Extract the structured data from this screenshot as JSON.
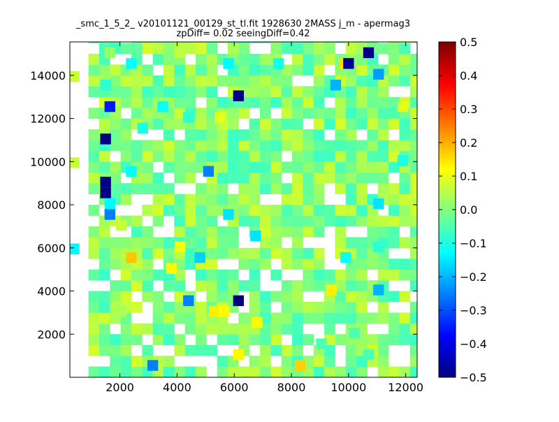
{
  "chart_data": {
    "type": "heatmap",
    "title": "_smc_1_5_2_ v20101121_00129_st_tl.fit 1928630 2MASS j_m - apermag3",
    "subtitle": "zpDiff= 0.02 seeingDiff=0.42",
    "xlabel": "",
    "ylabel": "",
    "xlim": [
      250,
      12400
    ],
    "ylim": [
      0,
      15550
    ],
    "x_ticks": [
      2000,
      4000,
      6000,
      8000,
      10000,
      12000
    ],
    "y_ticks": [
      2000,
      4000,
      6000,
      8000,
      10000,
      12000,
      14000
    ],
    "colorbar": {
      "colormap": "jet",
      "vmin": -0.5,
      "vmax": 0.5,
      "ticks": [
        0.5,
        0.4,
        0.3,
        0.2,
        0.1,
        0.0,
        -0.1,
        -0.2,
        -0.3,
        -0.4,
        -0.5
      ],
      "tick_labels": [
        "0.5",
        "0.4",
        "0.3",
        "0.2",
        "0.1",
        "0.0",
        "−0.1",
        "−0.2",
        "−0.3",
        "−0.4",
        "−0.5"
      ]
    },
    "grid": false,
    "cell_width": 375,
    "cell_height": 500,
    "cells": [
      {
        "x": 1650,
        "y": 15050,
        "v": 0.02
      },
      {
        "x": 2400,
        "y": 14550,
        "v": -0.12
      },
      {
        "x": 4100,
        "y": 15050,
        "v": 0.06
      },
      {
        "x": 5800,
        "y": 14550,
        "v": -0.13
      },
      {
        "x": 7550,
        "y": 14550,
        "v": -0.11
      },
      {
        "x": 9850,
        "y": 14550,
        "v": 0.16
      },
      {
        "x": 10000,
        "y": 14550,
        "v": -0.48
      },
      {
        "x": 10700,
        "y": 15050,
        "v": -0.5
      },
      {
        "x": 11050,
        "y": 14050,
        "v": -0.22
      },
      {
        "x": 1500,
        "y": 13550,
        "v": -0.08
      },
      {
        "x": 6150,
        "y": 13050,
        "v": -0.5
      },
      {
        "x": 9550,
        "y": 13550,
        "v": -0.2
      },
      {
        "x": 1650,
        "y": 12550,
        "v": -0.35
      },
      {
        "x": 3500,
        "y": 12550,
        "v": -0.12
      },
      {
        "x": 2800,
        "y": 11550,
        "v": -0.1
      },
      {
        "x": 4400,
        "y": 12050,
        "v": -0.08
      },
      {
        "x": 5500,
        "y": 12050,
        "v": 0.1
      },
      {
        "x": 1500,
        "y": 11050,
        "v": -0.5
      },
      {
        "x": 11900,
        "y": 12550,
        "v": 0.1
      },
      {
        "x": 11900,
        "y": 10050,
        "v": -0.1
      },
      {
        "x": 5100,
        "y": 9550,
        "v": -0.25
      },
      {
        "x": 2400,
        "y": 9550,
        "v": -0.12
      },
      {
        "x": 1500,
        "y": 9050,
        "v": -0.5
      },
      {
        "x": 1500,
        "y": 8550,
        "v": -0.5
      },
      {
        "x": 1650,
        "y": 8050,
        "v": -0.13
      },
      {
        "x": 1650,
        "y": 7550,
        "v": -0.25
      },
      {
        "x": 5800,
        "y": 7550,
        "v": -0.15
      },
      {
        "x": 11050,
        "y": 8050,
        "v": -0.15
      },
      {
        "x": 6750,
        "y": 6550,
        "v": -0.15
      },
      {
        "x": 4100,
        "y": 6050,
        "v": 0.11
      },
      {
        "x": 400,
        "y": 5950,
        "v": -0.13
      },
      {
        "x": 2400,
        "y": 5550,
        "v": 0.18
      },
      {
        "x": 3800,
        "y": 5050,
        "v": 0.13
      },
      {
        "x": 4800,
        "y": 5550,
        "v": -0.17
      },
      {
        "x": 9900,
        "y": 5550,
        "v": -0.12
      },
      {
        "x": 11050,
        "y": 6050,
        "v": -0.08
      },
      {
        "x": 11050,
        "y": 4050,
        "v": -0.2
      },
      {
        "x": 9400,
        "y": 4050,
        "v": 0.14
      },
      {
        "x": 4400,
        "y": 3550,
        "v": -0.25
      },
      {
        "x": 6150,
        "y": 3550,
        "v": -0.5
      },
      {
        "x": 5300,
        "y": 3050,
        "v": 0.14
      },
      {
        "x": 5650,
        "y": 3050,
        "v": 0.13
      },
      {
        "x": 6800,
        "y": 2550,
        "v": 0.13
      },
      {
        "x": 6150,
        "y": 1050,
        "v": 0.13
      },
      {
        "x": 8300,
        "y": 550,
        "v": 0.17
      },
      {
        "x": 3150,
        "y": 550,
        "v": -0.25
      },
      {
        "x": 10200,
        "y": 2050,
        "v": -0.05
      },
      {
        "x": 9050,
        "y": 1550,
        "v": -0.05
      },
      {
        "x": 10700,
        "y": 1050,
        "v": -0.05
      },
      {
        "x": 400,
        "y": 13950,
        "v": 0.07
      },
      {
        "x": 400,
        "y": 9950,
        "v": 0.07
      },
      {
        "x": 2050,
        "y": 3050,
        "v": 0.04
      },
      {
        "x": 2050,
        "y": 7050,
        "v": 0.07
      }
    ],
    "field": {
      "x_min": 900,
      "x_max": 12400,
      "y_min": 0,
      "y_max": 15550,
      "holes": [
        [
          1050,
          15300
        ],
        [
          2050,
          14800
        ],
        [
          3250,
          14300
        ],
        [
          4500,
          14550
        ],
        [
          5600,
          15300
        ],
        [
          6650,
          15050
        ],
        [
          7800,
          14800
        ],
        [
          8600,
          13800
        ],
        [
          9600,
          15300
        ],
        [
          11300,
          14550
        ],
        [
          11800,
          13300
        ],
        [
          950,
          12800
        ],
        [
          950,
          11800
        ],
        [
          2300,
          12300
        ],
        [
          2800,
          11300
        ],
        [
          3300,
          11300
        ],
        [
          4050,
          11050
        ],
        [
          11700,
          11050
        ],
        [
          1900,
          10300
        ],
        [
          2300,
          9300
        ],
        [
          3700,
          9300
        ],
        [
          4800,
          9050
        ],
        [
          11700,
          9300
        ],
        [
          950,
          8300
        ],
        [
          2050,
          7800
        ],
        [
          2550,
          7800
        ],
        [
          3050,
          8300
        ],
        [
          4300,
          8800
        ],
        [
          6050,
          8800
        ],
        [
          7300,
          8300
        ],
        [
          9800,
          8050
        ],
        [
          11300,
          7800
        ],
        [
          12100,
          6800
        ],
        [
          950,
          7050
        ],
        [
          2050,
          6550
        ],
        [
          3800,
          6800
        ],
        [
          5450,
          7300
        ],
        [
          6750,
          6050
        ],
        [
          7800,
          6300
        ],
        [
          8800,
          6050
        ],
        [
          10300,
          6800
        ],
        [
          11800,
          5800
        ],
        [
          950,
          5300
        ],
        [
          3300,
          5050
        ],
        [
          4550,
          4800
        ],
        [
          5800,
          5050
        ],
        [
          7300,
          4300
        ],
        [
          8050,
          4800
        ],
        [
          9300,
          5050
        ],
        [
          10800,
          4800
        ],
        [
          11800,
          4300
        ],
        [
          1300,
          4050
        ],
        [
          2550,
          3550
        ],
        [
          3050,
          3300
        ],
        [
          3800,
          3800
        ],
        [
          4800,
          3550
        ],
        [
          6300,
          3300
        ],
        [
          7550,
          3300
        ],
        [
          8800,
          3550
        ],
        [
          10800,
          3300
        ],
        [
          11800,
          3300
        ],
        [
          1800,
          2300
        ],
        [
          2800,
          2800
        ],
        [
          4050,
          2300
        ],
        [
          5300,
          1800
        ],
        [
          5800,
          1300
        ],
        [
          6800,
          1300
        ],
        [
          7800,
          1800
        ],
        [
          8800,
          2050
        ],
        [
          9800,
          2300
        ],
        [
          11050,
          2050
        ],
        [
          12050,
          1300
        ],
        [
          1300,
          800
        ],
        [
          3550,
          1050
        ],
        [
          4300,
          550
        ],
        [
          5050,
          800
        ],
        [
          6300,
          550
        ],
        [
          7550,
          800
        ],
        [
          8550,
          1050
        ],
        [
          9800,
          800
        ],
        [
          10800,
          300
        ],
        [
          11550,
          800
        ],
        [
          12100,
          550
        ]
      ]
    }
  }
}
